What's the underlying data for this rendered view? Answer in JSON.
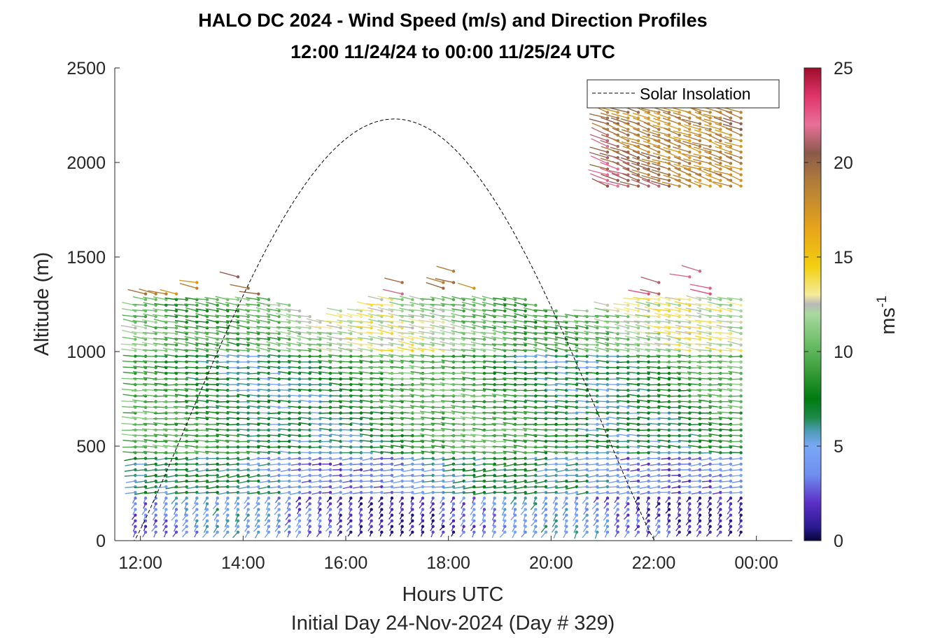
{
  "chart_data": {
    "type": "wind-barb-profile",
    "title": "HALO DC 2024 - Wind Speed (m/s) and Direction Profiles",
    "subtitle": "12:00 11/24/24 to 00:00 11/25/24  UTC",
    "xlabel": "Hours UTC",
    "x_sublabel": "Initial Day 24-Nov-2024 (Day # 329)",
    "ylabel": "Altitude (m)",
    "xlim": [
      11.5,
      24.7
    ],
    "ylim": [
      0,
      2500
    ],
    "x_ticks": [
      12,
      14,
      16,
      18,
      20,
      22,
      24
    ],
    "x_tick_labels": [
      "12:00",
      "14:00",
      "16:00",
      "18:00",
      "20:00",
      "22:00",
      "00:00"
    ],
    "y_ticks": [
      0,
      500,
      1000,
      1500,
      2000,
      2500
    ],
    "y_tick_labels": [
      "0",
      "500",
      "1000",
      "1500",
      "2000",
      "2500"
    ],
    "legend": {
      "entries": [
        "Solar Insolation"
      ],
      "location": "top-right"
    },
    "colorbar": {
      "label": "ms",
      "label_exponent": "-1",
      "range": [
        0,
        25
      ],
      "ticks": [
        0,
        5,
        10,
        15,
        20,
        25
      ],
      "tick_labels": [
        "0",
        "5",
        "10",
        "15",
        "20",
        "25"
      ]
    },
    "solar_insolation": {
      "style": "dashed",
      "rise_hour": 11.88,
      "set_hour": 22.02,
      "peak_hour": 16.88,
      "peak_altitude_scale": 2230
    },
    "wind_profiles": {
      "time_start": 11.9,
      "time_end": 23.85,
      "time_step": 0.2,
      "altitude_min": 45,
      "altitude_step": 30,
      "notes": "speed by colormap (0-25 m/s); vectors point from station toward direction of flow",
      "layers": [
        {
          "alt_range": [
            0,
            250
          ],
          "speed": 3,
          "direction_deg": 200
        },
        {
          "alt_range": [
            250,
            450
          ],
          "speed": 5,
          "direction_deg": 260
        },
        {
          "alt_range": [
            450,
            1000
          ],
          "speed": 8,
          "direction_deg": 275
        },
        {
          "alt_range": [
            1000,
            1300
          ],
          "speed": 11,
          "direction_deg": 285
        },
        {
          "alt_range": [
            1300,
            1470
          ],
          "speed": 20,
          "direction_deg": 290
        },
        {
          "alt_range": [
            1850,
            2300
          ],
          "speed": 20,
          "direction_deg": 300
        }
      ]
    }
  }
}
